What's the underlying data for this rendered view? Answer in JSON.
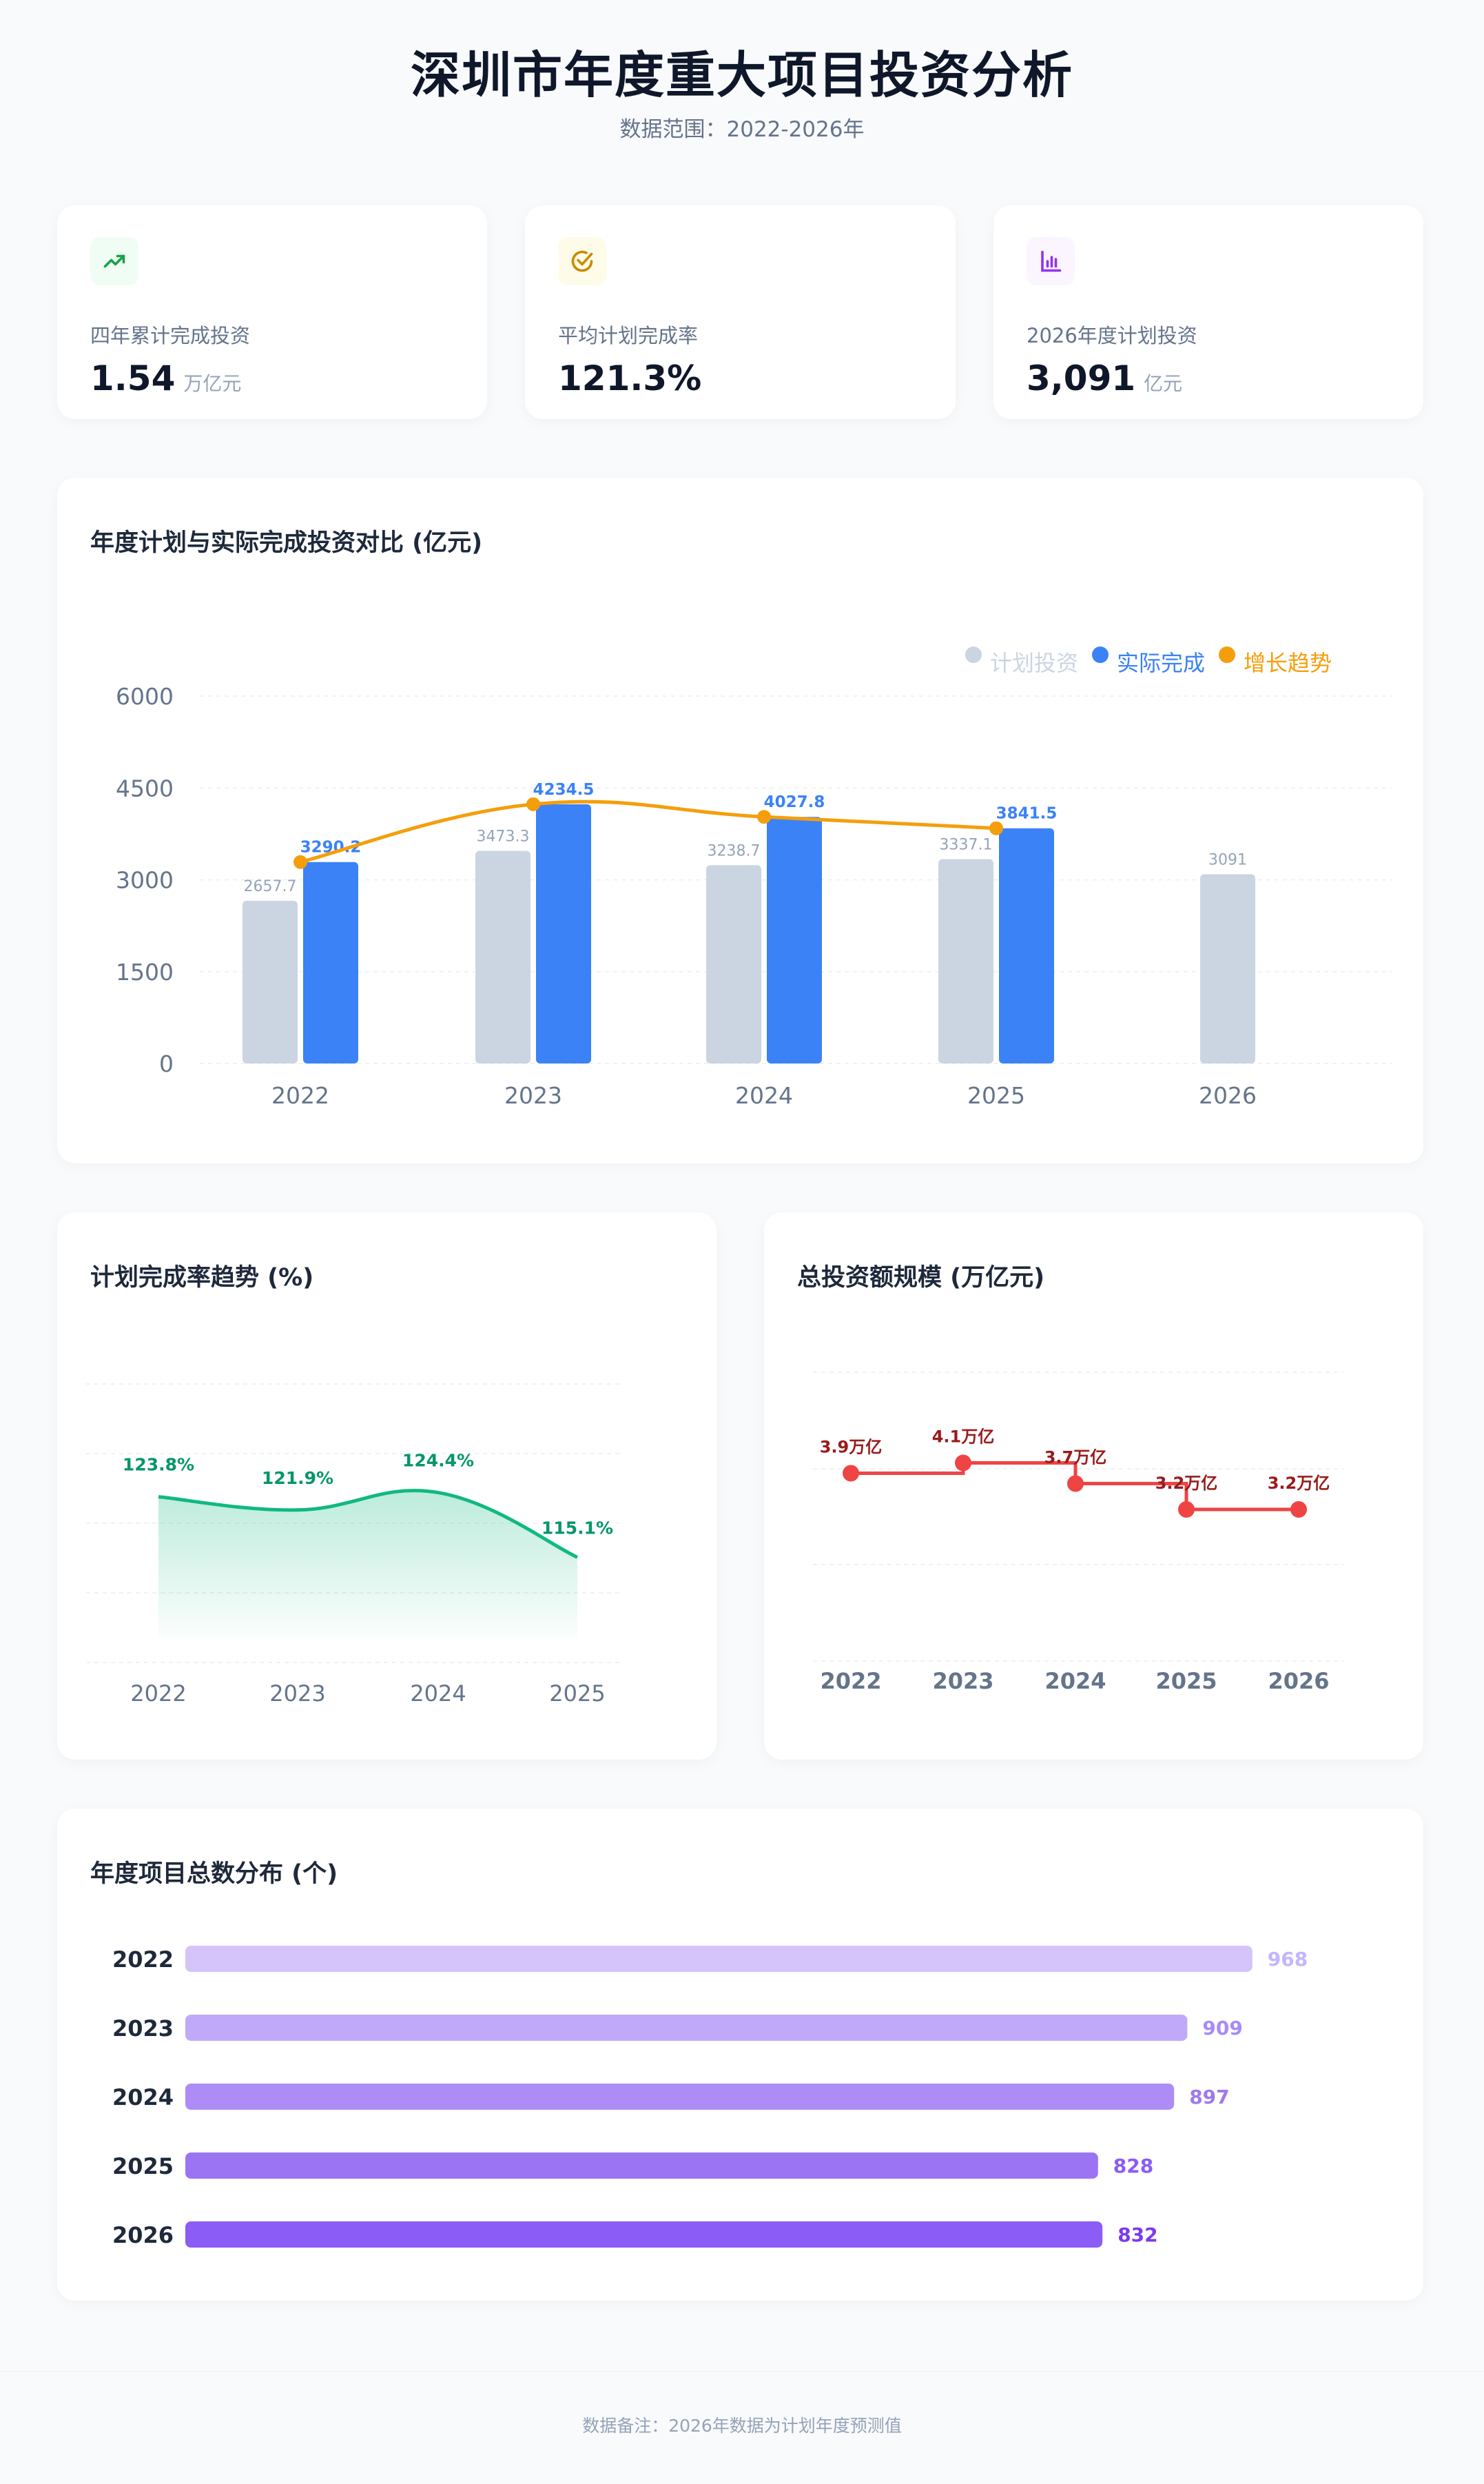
{
  "header": {
    "title": "深圳市年度重大项目投资分析",
    "subtitle": "数据范围：2022-2026年"
  },
  "kpis": [
    {
      "label": "四年累计完成投资",
      "value": "1.54",
      "unit": "万亿元",
      "icon": "trending-up-icon",
      "color": "#16a34a",
      "bg": "#f0fdf4"
    },
    {
      "label": "平均计划完成率",
      "value": "121.3%",
      "unit": "",
      "icon": "check-circle-icon",
      "color": "#ca8a04",
      "bg": "#fefce8"
    },
    {
      "label": "2026年度计划投资",
      "value": "3,091",
      "unit": "亿元",
      "icon": "bar-chart-icon",
      "color": "#9333ea",
      "bg": "#faf5ff"
    }
  ],
  "chart_data": [
    {
      "type": "bar",
      "title": "年度计划与实际完成投资对比 (亿元)",
      "categories": [
        "2022",
        "2023",
        "2024",
        "2025",
        "2026"
      ],
      "ylim": [
        0,
        6000
      ],
      "yticks": [
        "0",
        "1500",
        "3000",
        "4500",
        "6000"
      ],
      "grid": true,
      "legend": "top-right",
      "series": [
        {
          "name": "计划投资",
          "type": "bar",
          "color": "#cbd5e1",
          "values": [
            2657.7,
            3473.3,
            3238.7,
            3337.1,
            3091
          ]
        },
        {
          "name": "实际完成",
          "type": "bar",
          "color": "#3b82f6",
          "values": [
            3290.2,
            4234.5,
            4027.8,
            3841.5,
            null
          ]
        },
        {
          "name": "增长趋势",
          "type": "line",
          "smooth": true,
          "color": "#f59e0b",
          "values": [
            3290.2,
            4234.5,
            4027.8,
            3841.5,
            null
          ]
        }
      ]
    },
    {
      "type": "area",
      "title": "计划完成率趋势 (%)",
      "categories": [
        "2022",
        "2023",
        "2024",
        "2025"
      ],
      "values": [
        123.8,
        121.9,
        124.4,
        115.1
      ],
      "labels": [
        "123.8%",
        "121.9%",
        "124.4%",
        "115.1%"
      ],
      "ylim": [
        100,
        140
      ],
      "smooth": true,
      "color": "#10b981",
      "label_color": "#059669",
      "grid": true
    },
    {
      "type": "line",
      "step": "end",
      "title": "总投资额规模 (万亿元)",
      "categories": [
        "2022",
        "2023",
        "2024",
        "2025",
        "2026"
      ],
      "values": [
        3.9,
        4.1,
        3.7,
        3.2,
        3.2
      ],
      "labels": [
        "3.9万亿",
        "4.1万亿",
        "3.7万亿",
        "3.2万亿",
        "3.2万亿"
      ],
      "color": "#ef4444",
      "label_color": "#991b1b",
      "grid": true
    },
    {
      "type": "bar",
      "orientation": "horizontal",
      "title": "年度项目总数分布 (个)",
      "categories": [
        "2022",
        "2023",
        "2024",
        "2025",
        "2026"
      ],
      "values": [
        968,
        909,
        897,
        828,
        832
      ],
      "xlim": [
        0,
        1000
      ],
      "colors": [
        "#d4c4fa",
        "#c1a9f9",
        "#ad8cf6",
        "#9b74f4",
        "#8b5cf6"
      ],
      "label_colors": [
        "#c4b5fd",
        "#a78bfa",
        "#9f7aea",
        "#8b5cf6",
        "#7c3aed"
      ]
    }
  ],
  "footer": {
    "note": "数据备注：2026年数据为计划年度预测值"
  }
}
